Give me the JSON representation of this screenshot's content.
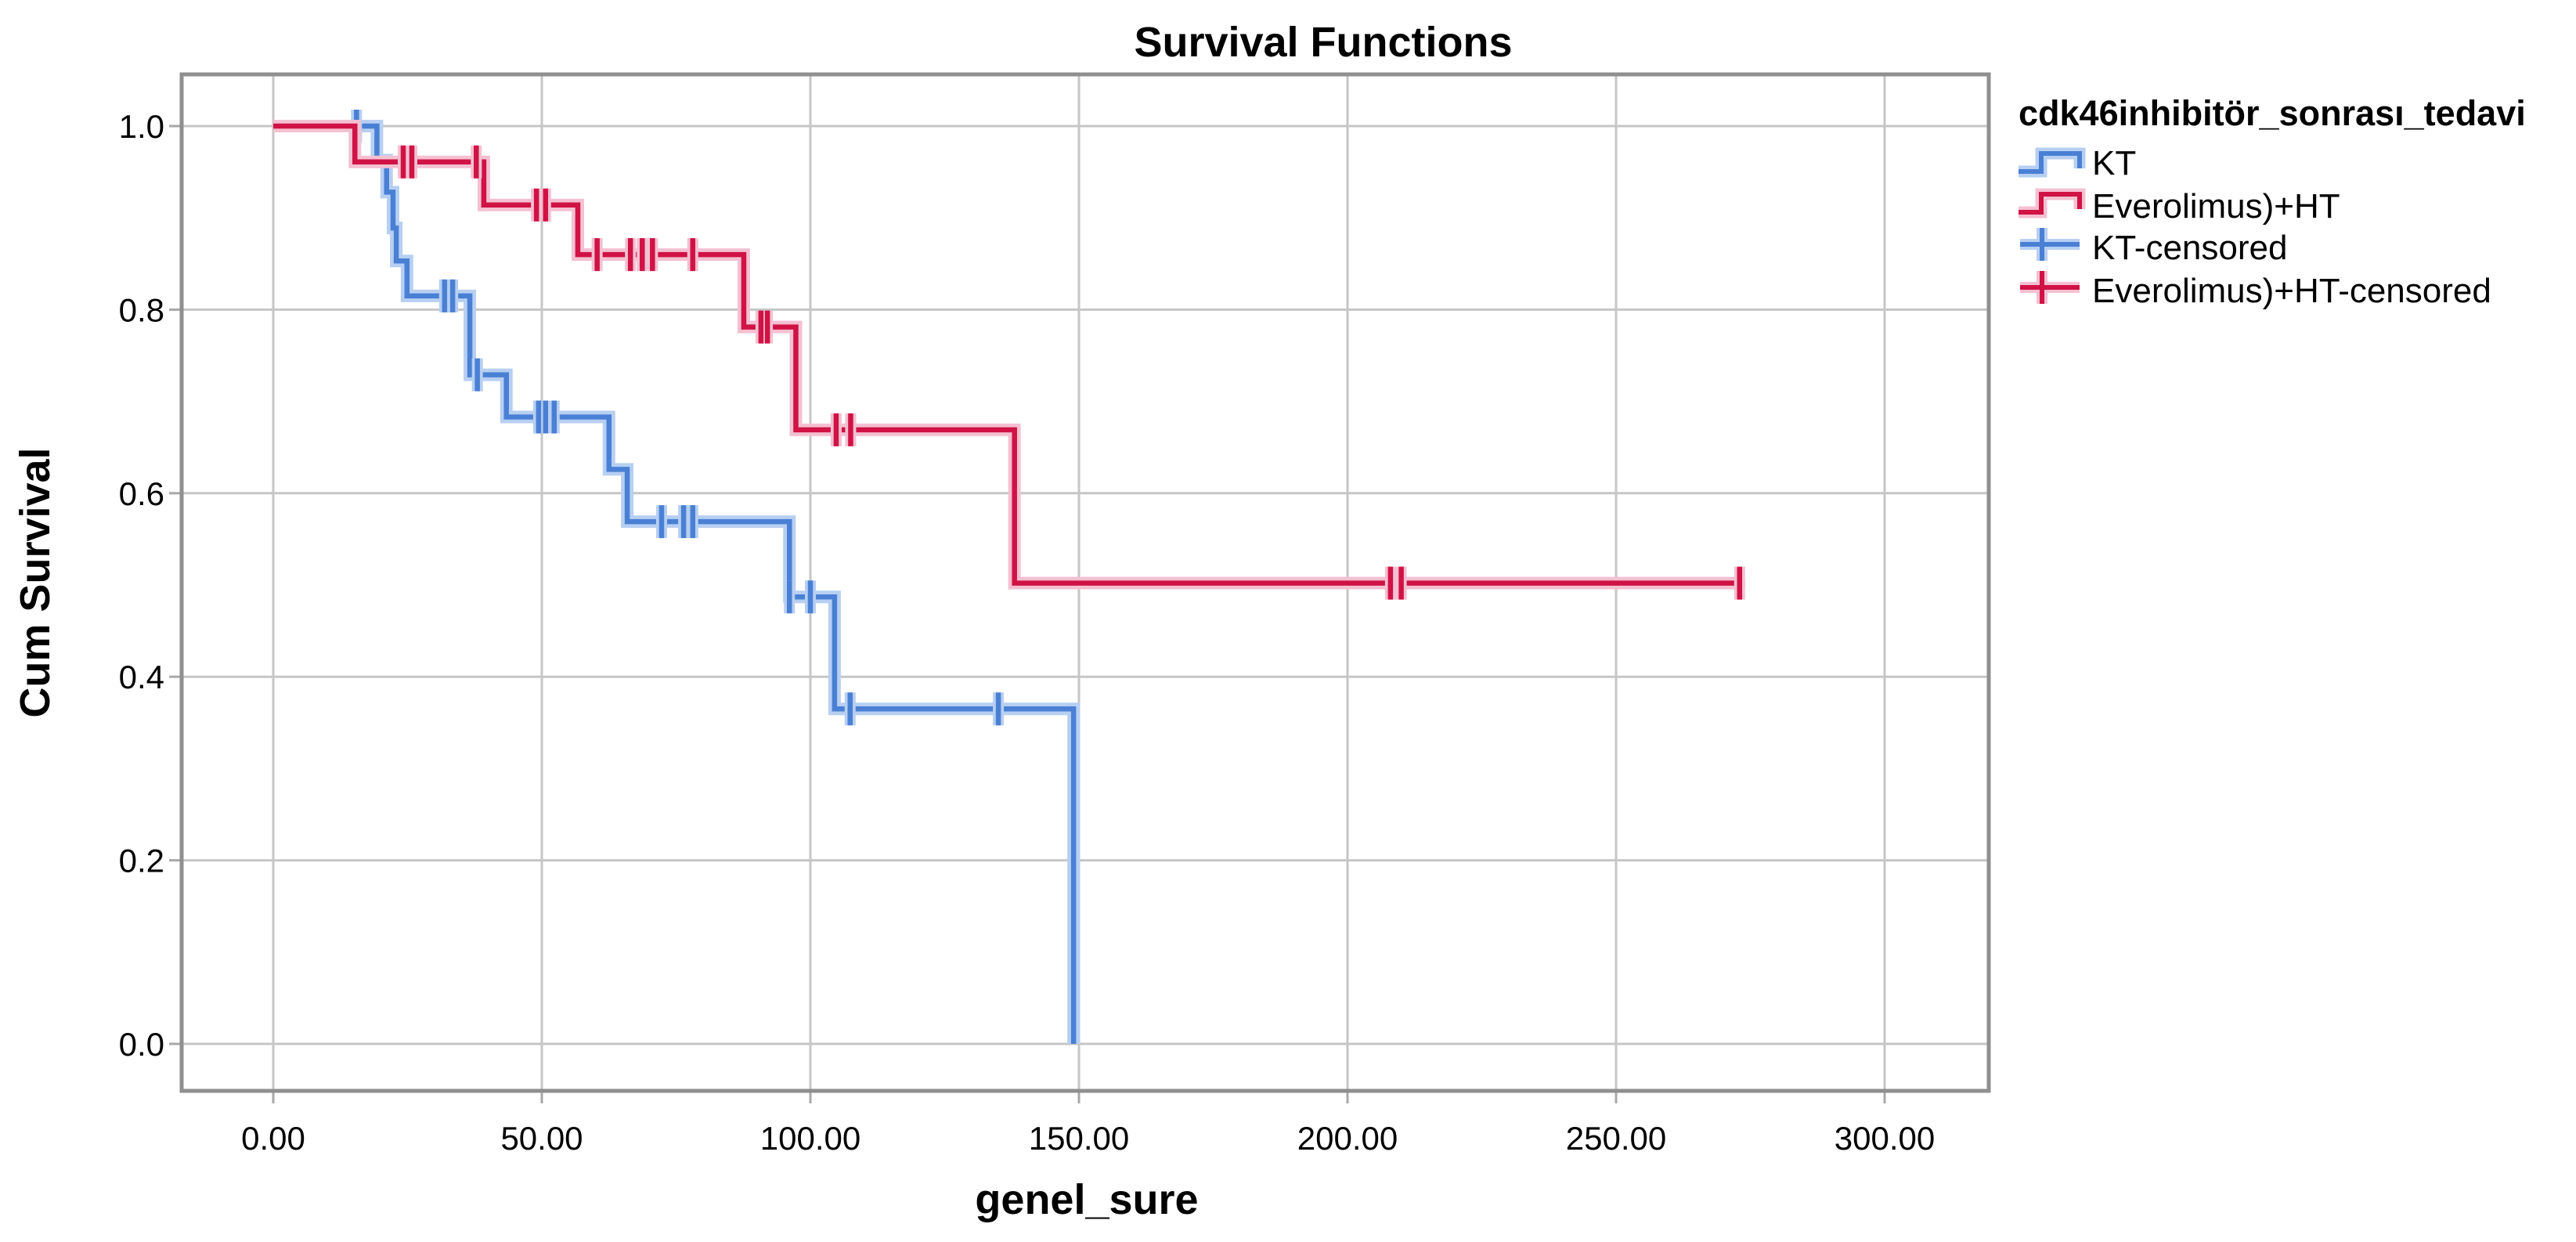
{
  "title": "Survival Functions",
  "axes": {
    "x_label": "genel_sure",
    "y_label": "Cum Survival",
    "x_ticks": [
      "0.00",
      "50.00",
      "100.00",
      "150.00",
      "200.00",
      "250.00",
      "300.00"
    ],
    "x_tick_values": [
      0,
      50,
      100,
      150,
      200,
      250,
      300
    ],
    "y_ticks": [
      "0.0",
      "0.2",
      "0.4",
      "0.6",
      "0.8",
      "1.0"
    ],
    "y_tick_values": [
      0.0,
      0.2,
      0.4,
      0.6,
      0.8,
      1.0
    ]
  },
  "legend": {
    "title": "cdk46inhibitör_sonrası_tedavi",
    "entries": [
      {
        "label": "KT",
        "type": "line",
        "color_key": "kt"
      },
      {
        "label": "Everolimus)+HT",
        "type": "line",
        "color_key": "evero"
      },
      {
        "label": "KT-censored",
        "type": "censor",
        "color_key": "kt"
      },
      {
        "label": "Everolimus)+HT-censored",
        "type": "censor",
        "color_key": "evero"
      }
    ]
  },
  "colors": {
    "kt": "#4a80d4",
    "kt_halo": "#b7cff2",
    "evero": "#d01245",
    "evero_halo": "#f4c0d1",
    "grid": "#c6c6c6",
    "frame": "#8f8f8f",
    "tick": "#a8a8a8",
    "text": "#000000"
  },
  "chart_data": {
    "type": "line",
    "subtype": "kaplan-meier-step",
    "title": "Survival Functions",
    "xlabel": "genel_sure",
    "ylabel": "Cum Survival",
    "xlim": [
      -17,
      319
    ],
    "ylim": [
      -0.05,
      1.06
    ],
    "grid": true,
    "legend_position": "top-right-outside",
    "series": [
      {
        "name": "KT",
        "color_key": "kt",
        "start": [
          0,
          1.0
        ],
        "steps": [
          [
            19.3,
            0.963
          ],
          [
            21.1,
            0.928
          ],
          [
            22.3,
            0.889
          ],
          [
            22.9,
            0.853
          ],
          [
            24.9,
            0.815
          ],
          [
            36.6,
            0.729
          ],
          [
            43.4,
            0.683
          ],
          [
            62.5,
            0.626
          ],
          [
            65.9,
            0.569
          ],
          [
            96.1,
            0.487
          ],
          [
            104.5,
            0.365
          ],
          [
            149,
            0.0
          ]
        ],
        "end_t": 149,
        "censored": [
          [
            15.5,
            1.0
          ],
          [
            31.9,
            0.815
          ],
          [
            33.4,
            0.815
          ],
          [
            38.0,
            0.729
          ],
          [
            49.4,
            0.683
          ],
          [
            50.7,
            0.683
          ],
          [
            52.3,
            0.683
          ],
          [
            72.3,
            0.569
          ],
          [
            76.4,
            0.569
          ],
          [
            78.1,
            0.569
          ],
          [
            96.1,
            0.487
          ],
          [
            100.0,
            0.487
          ],
          [
            107.4,
            0.365
          ],
          [
            135.0,
            0.365
          ]
        ]
      },
      {
        "name": "Everolimus)+HT",
        "color_key": "evero",
        "start": [
          0,
          1.0
        ],
        "steps": [
          [
            15.2,
            0.961
          ],
          [
            39.2,
            0.914
          ],
          [
            56.7,
            0.86
          ],
          [
            87.6,
            0.781
          ],
          [
            97.3,
            0.669
          ],
          [
            138.0,
            0.502
          ]
        ],
        "end_t": 274,
        "censored": [
          [
            24.2,
            0.961
          ],
          [
            25.8,
            0.961
          ],
          [
            37.8,
            0.961
          ],
          [
            49.0,
            0.914
          ],
          [
            50.7,
            0.914
          ],
          [
            60.3,
            0.86
          ],
          [
            66.5,
            0.86
          ],
          [
            68.7,
            0.86
          ],
          [
            70.6,
            0.86
          ],
          [
            78.1,
            0.86
          ],
          [
            90.8,
            0.781
          ],
          [
            92.0,
            0.781
          ],
          [
            104.8,
            0.669
          ],
          [
            107.5,
            0.669
          ],
          [
            208.0,
            0.502
          ],
          [
            210.0,
            0.502
          ],
          [
            273.0,
            0.502
          ]
        ]
      }
    ]
  }
}
